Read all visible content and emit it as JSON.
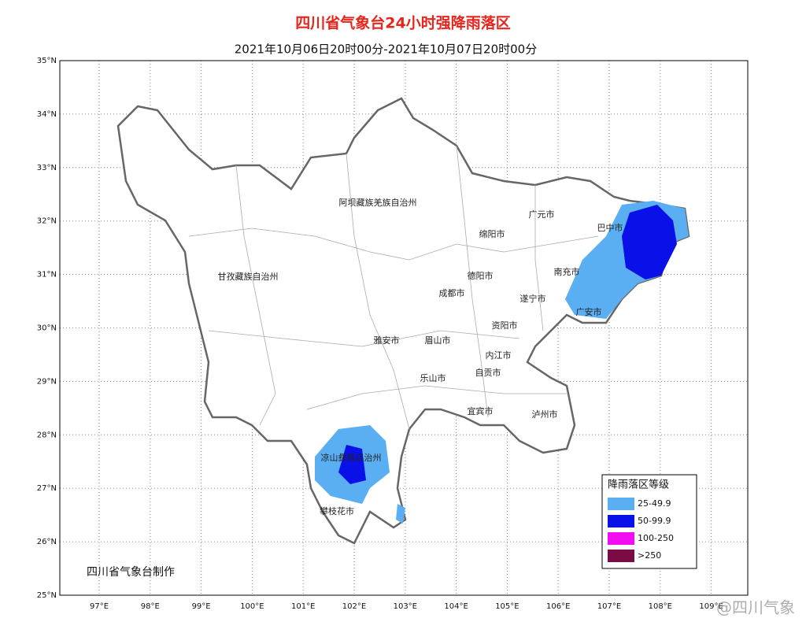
{
  "title": "四川省气象台24小时强降雨落区",
  "subtitle": "2021年10月06日20时00分-2021年10月07日20时00分",
  "lat_labels": [
    "35°N",
    "34°N",
    "33°N",
    "32°N",
    "31°N",
    "30°N",
    "29°N",
    "28°N",
    "27°N",
    "26°N",
    "25°N"
  ],
  "lon_labels": [
    "97°E",
    "98°E",
    "99°E",
    "100°E",
    "101°E",
    "102°E",
    "103°E",
    "104°E",
    "105°E",
    "106°E",
    "107°E",
    "108°E",
    "109°E"
  ],
  "places": [
    "阿坝藏族羌族自治州",
    "广元市",
    "巴中市",
    "绵阳市",
    "甘孜藏族自治州",
    "德阳市",
    "南充市",
    "成都市",
    "遂宁市",
    "广安市",
    "资阳市",
    "雅安市",
    "眉山市",
    "内江市",
    "自贡市",
    "乐山市",
    "宜宾市",
    "泸州市",
    "凉山彝族自治州",
    "攀枝花市"
  ],
  "legend": {
    "title": "降雨落区等级",
    "items": [
      {
        "label": "25-49.9",
        "color": "#5aaff2"
      },
      {
        "label": "50-99.9",
        "color": "#0a10e8"
      },
      {
        "label": "100-250",
        "color": "#f20df2"
      },
      {
        "label": ">250",
        "color": "#7a0c45"
      }
    ]
  },
  "credit": "四川省气象台制作",
  "watermark": "@四川气象"
}
